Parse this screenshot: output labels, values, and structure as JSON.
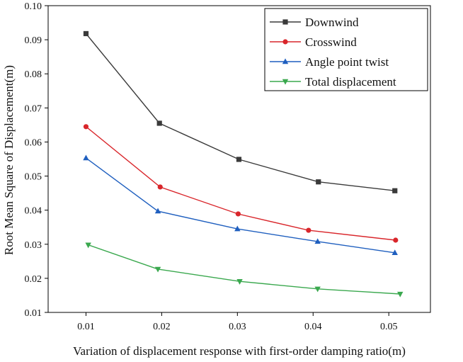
{
  "chart_data": {
    "type": "line",
    "title": "",
    "xlabel": "Variation of displacement response with first-order damping ratio(m)",
    "ylabel": "Root Mean Square of Displacement(m)",
    "xlim": [
      0.005,
      0.0555
    ],
    "ylim": [
      0.01,
      0.1
    ],
    "x_ticks": [
      0.01,
      0.02,
      0.03,
      0.04,
      0.05
    ],
    "x_tick_labels": [
      "0.01",
      "0.02",
      "0.03",
      "0.04",
      "0.05"
    ],
    "y_ticks": [
      0.01,
      0.02,
      0.03,
      0.04,
      0.05,
      0.06,
      0.07,
      0.08,
      0.09,
      0.1
    ],
    "y_tick_labels": [
      "0.01",
      "0.02",
      "0.03",
      "0.04",
      "0.05",
      "0.06",
      "0.07",
      "0.08",
      "0.09",
      "0.10"
    ],
    "legend_position": "top-right",
    "series": [
      {
        "name": "Downwind",
        "color": "#3a3a3a",
        "marker": "square",
        "x": [
          0.01,
          0.0197,
          0.0302,
          0.0407,
          0.0508
        ],
        "y": [
          0.0918,
          0.0655,
          0.0549,
          0.0483,
          0.0457
        ]
      },
      {
        "name": "Crosswind",
        "color": "#d9262b",
        "marker": "circle",
        "x": [
          0.01,
          0.0198,
          0.0301,
          0.0394,
          0.0509
        ],
        "y": [
          0.0645,
          0.0468,
          0.0389,
          0.0341,
          0.0312
        ]
      },
      {
        "name": "Angle point twist",
        "color": "#1f5fbf",
        "marker": "triangle-up",
        "x": [
          0.01,
          0.0195,
          0.03,
          0.0406,
          0.0508
        ],
        "y": [
          0.0553,
          0.0397,
          0.0345,
          0.0308,
          0.0275
        ]
      },
      {
        "name": "Total displacement",
        "color": "#3aa84e",
        "marker": "triangle-down",
        "x": [
          0.0103,
          0.0195,
          0.0303,
          0.0406,
          0.0515
        ],
        "y": [
          0.0298,
          0.0227,
          0.0191,
          0.0169,
          0.0154
        ]
      }
    ]
  }
}
